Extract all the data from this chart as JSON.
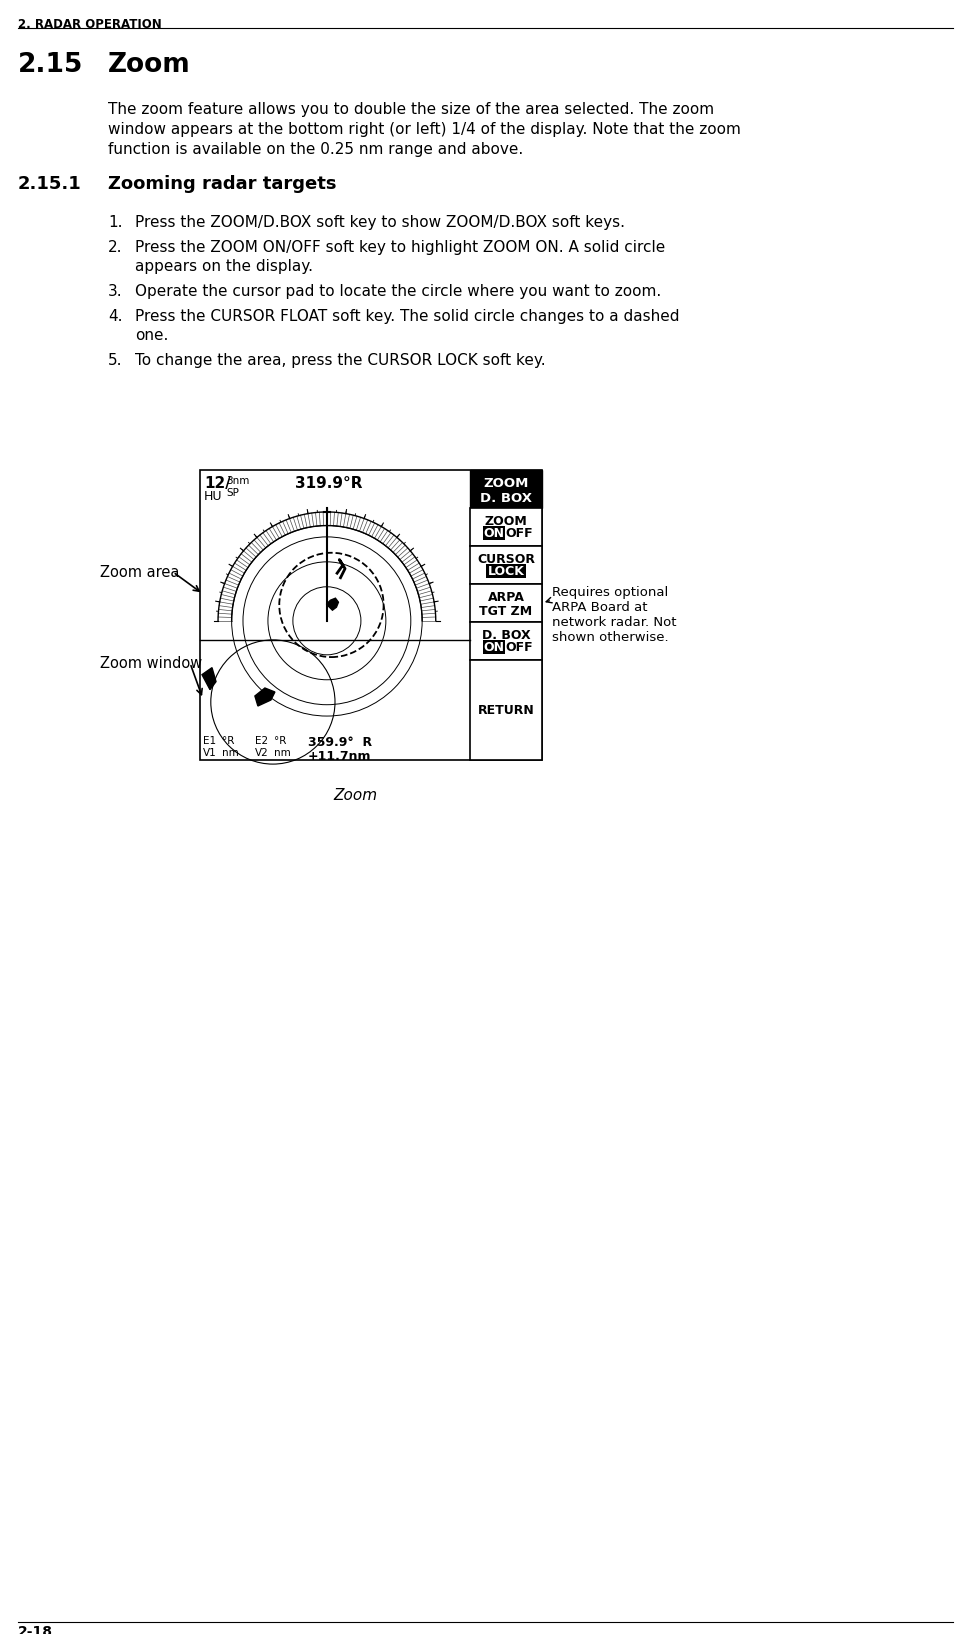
{
  "page_header": "2. RADAR OPERATION",
  "page_footer": "2-18",
  "section_num": "2.15",
  "section_name": "Zoom",
  "section_body_lines": [
    "The zoom feature allows you to double the size of the area selected. The zoom",
    "window appears at the bottom right (or left) 1/4 of the display. Note that the zoom",
    "function is available on the 0.25 nm range and above."
  ],
  "subsection_num": "2.15.1",
  "subsection_name": "Zooming radar targets",
  "steps": [
    [
      "Press the ZOOM/D.BOX soft key to show ZOOM/D.BOX soft keys."
    ],
    [
      "Press the ZOOM ON/OFF soft key to highlight ZOOM ON. A solid circle",
      "appears on the display."
    ],
    [
      "Operate the cursor pad to locate the circle where you want to zoom."
    ],
    [
      "Press the CURSOR FLOAT soft key. The solid circle changes to a dashed",
      "one."
    ],
    [
      "To change the area, press the CURSOR LOCK soft key."
    ]
  ],
  "figure_caption": "Zoom",
  "label_zoom_area": "Zoom area",
  "label_zoom_window": "Zoom window",
  "note_text": "Requires optional\nARPA Board at\nnetwork radar. Not\nshown otherwise.",
  "radar_range": "12/",
  "radar_range_unit": "3nm",
  "radar_sp": "SP",
  "radar_hu": "HU",
  "radar_heading": "319.9°R",
  "softkey_header": "ZOOM\nD. BOX",
  "sk1_line1": "ZOOM",
  "sk1_line2_on": "ON",
  "sk1_line2_off": "OFF",
  "sk2_line1": "CURSOR",
  "sk2_line2": "LOCK",
  "sk3_line1": "ARPA",
  "sk3_line2": "TGT ZM",
  "sk4_line1": "D. BOX",
  "sk4_line2_on": "ON",
  "sk4_line2_off": "OFF",
  "sk5": "RETURN",
  "bottom_e1": "E1",
  "bottom_v1": "V1",
  "bottom_degR1": "°R",
  "bottom_nm1": "nm",
  "bottom_e2": "E2",
  "bottom_v2": "V2",
  "bottom_degR2": "°R",
  "bottom_nm2": "nm",
  "bottom_pos": "359.9°  R",
  "bottom_dist": "+11.7nm",
  "bg_color": "#ffffff",
  "text_color": "#000000"
}
